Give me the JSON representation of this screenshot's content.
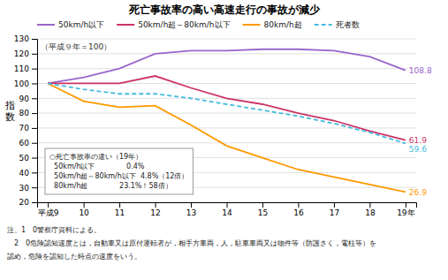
{
  "chart_data": {
    "type": "line",
    "title": "死亡事故率の高い高速走行の事故が減少",
    "y_label": "指数",
    "categories": [
      "平成9",
      "10",
      "11",
      "12",
      "13",
      "14",
      "15",
      "16",
      "17",
      "18",
      "19年"
    ],
    "series": [
      {
        "name": "50km/h以下",
        "color": "#9966cc",
        "values": [
          100,
          104,
          110,
          120,
          122,
          122,
          123,
          123,
          122,
          118,
          108.8
        ]
      },
      {
        "name": "50km/h超～80km/h以下",
        "color": "#cc3366",
        "values": [
          100,
          100,
          100,
          105,
          97,
          90,
          86,
          80,
          75,
          68,
          61.9
        ]
      },
      {
        "name": "80km/h超",
        "color": "#ff9900",
        "values": [
          100,
          88,
          84,
          85,
          72,
          58,
          50,
          42,
          37,
          32,
          26.9
        ]
      },
      {
        "name": "死者数",
        "color": "#44bbdd",
        "line_style": "dashed",
        "values": [
          100,
          96,
          93,
          93,
          90,
          86,
          82,
          78,
          73,
          67,
          59.6
        ]
      }
    ],
    "ylim": [
      20,
      130
    ],
    "yticks": [
      20,
      30,
      40,
      50,
      60,
      70,
      80,
      90,
      100,
      110,
      120,
      130
    ],
    "grid": true,
    "legend": "top",
    "data_labels": true,
    "annotations": [
      "（平成９年＝100）"
    ],
    "note": [
      "○死亡事故率の違い（19年）",
      "  50km/h以下              0.4%",
      "  50km/h超～80km/h以下  4.8%（12倍）",
      "  80km/h超              23.1%！58倍）"
    ],
    "footnotes": [
      "注、1　0警察庁資料による。",
      "　2　0危険認知速度とは，自動車又は原付運転者が，相手方車両，人，駐車車両又は物件等（防護さく，電柱等）を",
      "認め，危険を認知した時点の速度をいう。"
    ]
  }
}
